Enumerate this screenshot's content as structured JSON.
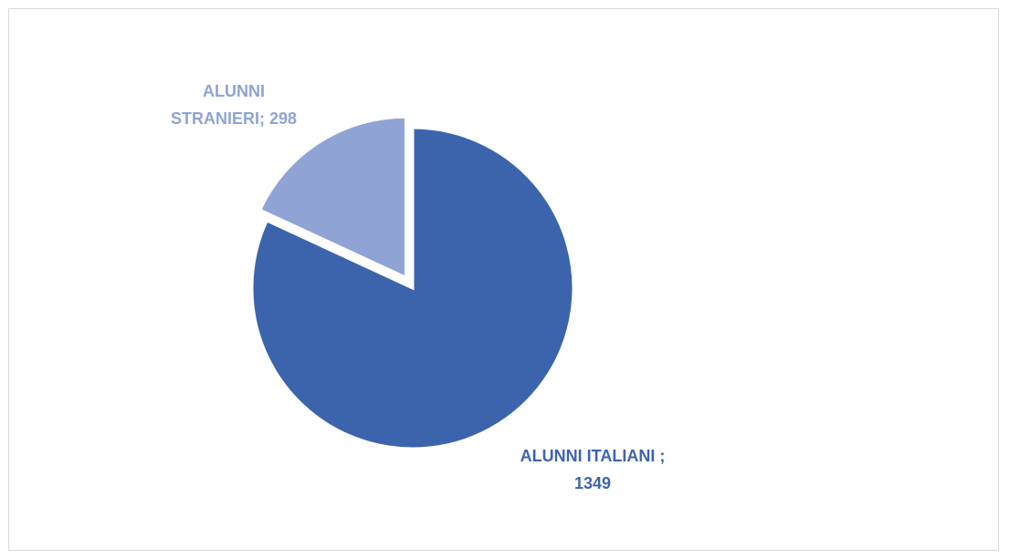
{
  "chart_data": {
    "type": "pie",
    "title": "",
    "slices": [
      {
        "label": "ALUNNI ITALIANI",
        "value": 1349,
        "color": "#3c64ad",
        "label_lines": [
          "ALUNNI ITALIANI ;",
          "1349"
        ],
        "exploded": false
      },
      {
        "label": "ALUNNI STRANIERI",
        "value": 298,
        "color": "#8fa3d5",
        "label_lines": [
          "ALUNNI",
          "STRANIERI; 298"
        ],
        "exploded": true
      }
    ],
    "legend": "none",
    "start_angle_deg": 0,
    "direction": "clockwise"
  }
}
